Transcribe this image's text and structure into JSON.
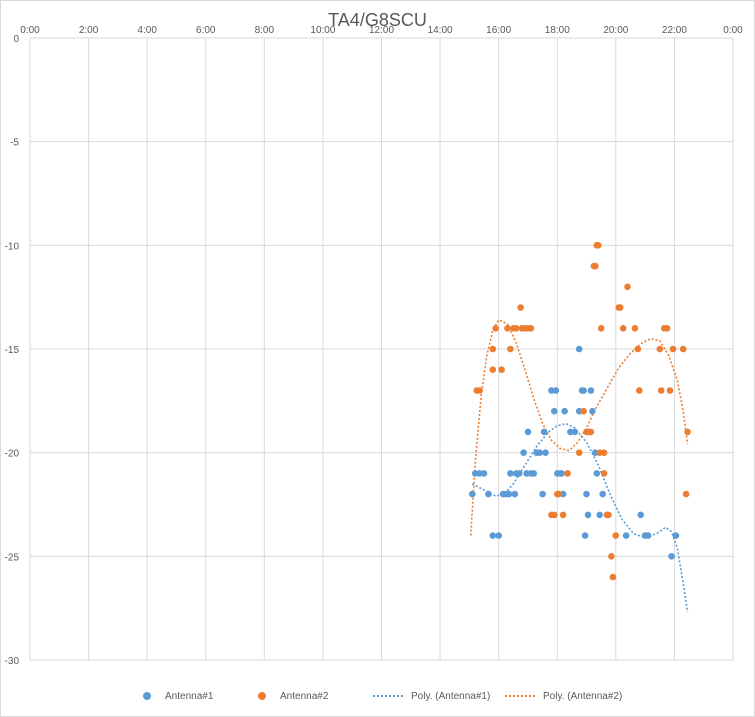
{
  "chart_data": {
    "type": "scatter",
    "title": "TA4/G8SCU",
    "x_ticks": [
      "0:00",
      "2:00",
      "4:00",
      "6:00",
      "8:00",
      "10:00",
      "12:00",
      "14:00",
      "16:00",
      "18:00",
      "20:00",
      "22:00",
      "0:00"
    ],
    "x_range_hours": [
      0,
      24
    ],
    "y_ticks": [
      "0",
      "-5",
      "-10",
      "-15",
      "-20",
      "-25",
      "-30"
    ],
    "y_range": [
      -30,
      0
    ],
    "gridlines": true,
    "legend_position": "bottom",
    "series": [
      {
        "name": "Antenna#1",
        "kind": "points",
        "color": "#5b9bd5",
        "points": [
          [
            15.1,
            -22
          ],
          [
            15.2,
            -21
          ],
          [
            15.35,
            -21
          ],
          [
            15.5,
            -21
          ],
          [
            15.65,
            -22
          ],
          [
            15.8,
            -24
          ],
          [
            16.0,
            -24
          ],
          [
            16.15,
            -22
          ],
          [
            16.25,
            -22
          ],
          [
            16.35,
            -22
          ],
          [
            16.4,
            -21
          ],
          [
            16.55,
            -22
          ],
          [
            16.6,
            -21
          ],
          [
            16.7,
            -21
          ],
          [
            16.85,
            -20
          ],
          [
            16.95,
            -21
          ],
          [
            17.0,
            -19
          ],
          [
            17.1,
            -21
          ],
          [
            17.2,
            -21
          ],
          [
            17.3,
            -20
          ],
          [
            17.4,
            -20
          ],
          [
            17.5,
            -22
          ],
          [
            17.55,
            -19
          ],
          [
            17.6,
            -20
          ],
          [
            17.8,
            -17
          ],
          [
            17.9,
            -18
          ],
          [
            17.95,
            -17
          ],
          [
            18.0,
            -21
          ],
          [
            18.1,
            -21
          ],
          [
            18.15,
            -21
          ],
          [
            18.2,
            -22
          ],
          [
            18.25,
            -18
          ],
          [
            18.45,
            -19
          ],
          [
            18.6,
            -19
          ],
          [
            18.75,
            -15
          ],
          [
            18.75,
            -18
          ],
          [
            18.85,
            -17
          ],
          [
            18.9,
            -17
          ],
          [
            18.95,
            -24
          ],
          [
            19.0,
            -22
          ],
          [
            19.05,
            -23
          ],
          [
            19.1,
            -19
          ],
          [
            19.15,
            -17
          ],
          [
            19.2,
            -18
          ],
          [
            19.3,
            -20
          ],
          [
            19.35,
            -21
          ],
          [
            19.45,
            -23
          ],
          [
            19.55,
            -22
          ],
          [
            19.7,
            -23
          ],
          [
            20.35,
            -24
          ],
          [
            20.85,
            -23
          ],
          [
            21.0,
            -24
          ],
          [
            21.1,
            -24
          ],
          [
            21.9,
            -25
          ],
          [
            22.05,
            -24
          ]
        ]
      },
      {
        "name": "Antenna#2",
        "kind": "points",
        "color": "#ed7d31",
        "points": [
          [
            15.25,
            -17
          ],
          [
            15.35,
            -17
          ],
          [
            15.8,
            -16
          ],
          [
            15.8,
            -15
          ],
          [
            15.9,
            -14
          ],
          [
            16.1,
            -16
          ],
          [
            16.3,
            -14
          ],
          [
            16.4,
            -15
          ],
          [
            16.5,
            -14
          ],
          [
            16.6,
            -14
          ],
          [
            16.75,
            -13
          ],
          [
            16.8,
            -14
          ],
          [
            16.9,
            -14
          ],
          [
            17.0,
            -14
          ],
          [
            17.1,
            -14
          ],
          [
            17.8,
            -23
          ],
          [
            17.9,
            -23
          ],
          [
            18.0,
            -22
          ],
          [
            18.05,
            -22
          ],
          [
            18.2,
            -23
          ],
          [
            18.35,
            -21
          ],
          [
            18.75,
            -20
          ],
          [
            18.9,
            -18
          ],
          [
            19.0,
            -19
          ],
          [
            19.05,
            -19
          ],
          [
            19.15,
            -19
          ],
          [
            19.25,
            -11
          ],
          [
            19.3,
            -11
          ],
          [
            19.35,
            -10
          ],
          [
            19.4,
            -10
          ],
          [
            19.45,
            -20
          ],
          [
            19.5,
            -14
          ],
          [
            19.6,
            -20
          ],
          [
            19.6,
            -21
          ],
          [
            19.7,
            -23
          ],
          [
            19.75,
            -23
          ],
          [
            19.85,
            -25
          ],
          [
            19.9,
            -26
          ],
          [
            20.0,
            -24
          ],
          [
            20.1,
            -13
          ],
          [
            20.15,
            -13
          ],
          [
            20.25,
            -14
          ],
          [
            20.4,
            -12
          ],
          [
            20.65,
            -14
          ],
          [
            20.75,
            -15
          ],
          [
            20.8,
            -17
          ],
          [
            21.5,
            -15
          ],
          [
            21.55,
            -17
          ],
          [
            21.65,
            -14
          ],
          [
            21.75,
            -14
          ],
          [
            21.85,
            -17
          ],
          [
            21.95,
            -15
          ],
          [
            22.3,
            -15
          ],
          [
            22.4,
            -22
          ],
          [
            22.45,
            -19
          ]
        ]
      },
      {
        "name": "Poly. (Antenna#1)",
        "kind": "trendline",
        "color": "#5b9bd5",
        "points": [
          [
            15.1,
            -21.5
          ],
          [
            15.5,
            -21.8
          ],
          [
            15.9,
            -22.1
          ],
          [
            16.2,
            -22.0
          ],
          [
            16.5,
            -21.5
          ],
          [
            16.9,
            -20.6
          ],
          [
            17.3,
            -19.7
          ],
          [
            17.7,
            -19.0
          ],
          [
            18.0,
            -18.7
          ],
          [
            18.3,
            -18.6
          ],
          [
            18.6,
            -18.8
          ],
          [
            19.0,
            -19.5
          ],
          [
            19.4,
            -20.6
          ],
          [
            19.8,
            -22.0
          ],
          [
            20.2,
            -23.2
          ],
          [
            20.6,
            -23.9
          ],
          [
            21.0,
            -24.1
          ],
          [
            21.4,
            -23.9
          ],
          [
            21.7,
            -23.6
          ],
          [
            21.9,
            -23.8
          ],
          [
            22.1,
            -24.6
          ],
          [
            22.3,
            -26.3
          ],
          [
            22.45,
            -27.7
          ]
        ]
      },
      {
        "name": "Poly. (Antenna#2)",
        "kind": "trendline",
        "color": "#ed7d31",
        "points": [
          [
            15.05,
            -24.0
          ],
          [
            15.2,
            -20.5
          ],
          [
            15.4,
            -17.3
          ],
          [
            15.6,
            -15.3
          ],
          [
            15.8,
            -14.1
          ],
          [
            16.0,
            -13.6
          ],
          [
            16.3,
            -13.8
          ],
          [
            16.6,
            -14.7
          ],
          [
            16.9,
            -16.0
          ],
          [
            17.2,
            -17.4
          ],
          [
            17.5,
            -18.6
          ],
          [
            17.8,
            -19.4
          ],
          [
            18.1,
            -19.8
          ],
          [
            18.4,
            -19.9
          ],
          [
            18.7,
            -19.5
          ],
          [
            19.0,
            -18.8
          ],
          [
            19.3,
            -17.9
          ],
          [
            19.7,
            -16.9
          ],
          [
            20.1,
            -15.9
          ],
          [
            20.5,
            -15.2
          ],
          [
            20.9,
            -14.7
          ],
          [
            21.2,
            -14.5
          ],
          [
            21.5,
            -14.6
          ],
          [
            21.8,
            -15.3
          ],
          [
            22.1,
            -16.5
          ],
          [
            22.3,
            -18.0
          ],
          [
            22.45,
            -19.6
          ]
        ]
      }
    ]
  }
}
